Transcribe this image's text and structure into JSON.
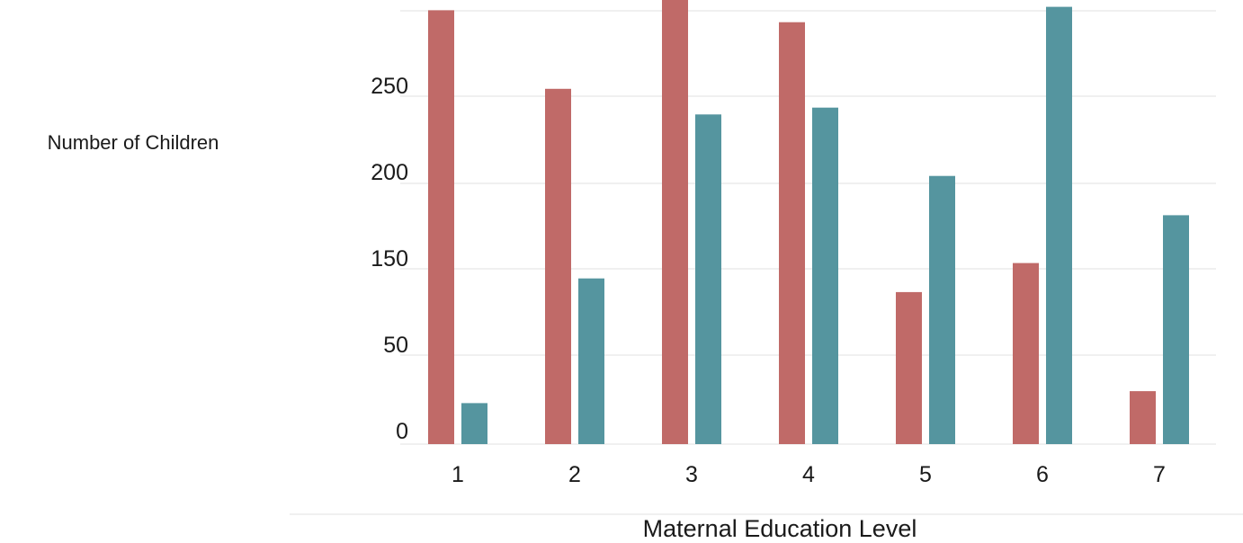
{
  "chart_data": {
    "type": "bar",
    "xlabel": "Maternal Education Level",
    "ylabel": "Number of Children",
    "categories": [
      "1",
      "2",
      "3",
      "4",
      "5",
      "6",
      "7"
    ],
    "y_tick_labels": [
      "0",
      "50",
      "150",
      "200",
      "250"
    ],
    "series": [
      {
        "color": "#c06a68",
        "values": [
          254,
          208,
          281,
          247,
          89,
          106,
          31
        ]
      },
      {
        "color": "#55959f",
        "values": [
          24,
          97,
          193,
          197,
          157,
          256,
          134
        ]
      }
    ],
    "grid": true,
    "legend": "none"
  }
}
